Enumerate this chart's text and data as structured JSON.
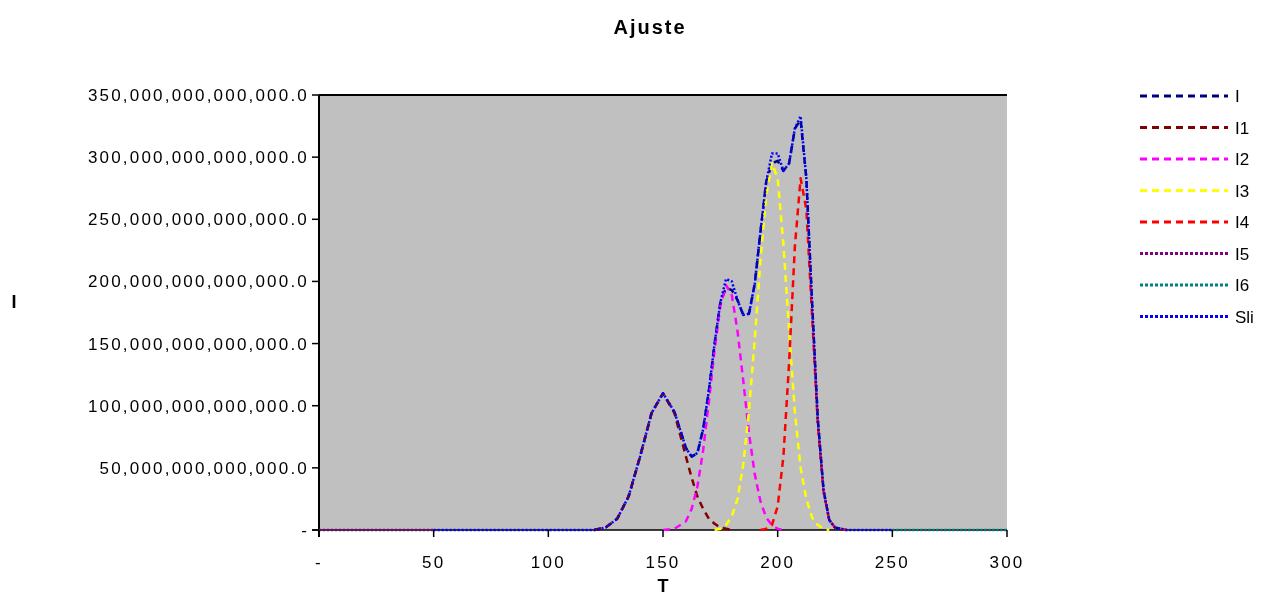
{
  "chart_data": {
    "type": "line",
    "title": "Ajuste",
    "xlabel": "T",
    "ylabel": "I",
    "x": [
      0,
      50,
      100,
      110,
      115,
      120,
      125,
      130,
      135,
      140,
      145,
      150,
      155,
      160,
      162.5,
      165,
      167.5,
      170,
      172.5,
      175,
      177.5,
      180,
      182.5,
      185,
      187.5,
      190,
      192.5,
      195,
      197.5,
      200,
      202.5,
      205,
      207.5,
      210,
      212.5,
      215,
      217.5,
      220,
      222.5,
      225,
      230,
      240,
      250,
      300
    ],
    "series": [
      {
        "name": "I",
        "color": "#000080",
        "line_style": "dashed",
        "values": [
          null,
          null,
          null,
          null,
          null,
          0,
          2000000000000.0,
          9000000000000.0,
          27000000000000.0,
          59000000000000.0,
          94000000000000.0,
          110000000000000.0,
          95000000000000.0,
          66000000000000.0,
          59000000000000.0,
          62000000000000.0,
          81000000000000.0,
          112000000000000.0,
          150000000000000.0,
          183000000000000.0,
          195000000000000.0,
          193000000000000.0,
          185000000000000.0,
          173000000000000.0,
          174000000000000.0,
          198000000000000.0,
          240000000000000.0,
          280000000000000.0,
          295000000000000.0,
          297000000000000.0,
          289000000000000.0,
          295000000000000.0,
          323000000000000.0,
          330000000000000.0,
          283000000000000.0,
          183000000000000.0,
          89000000000000.0,
          32000000000000.0,
          8000000000000.0,
          2000000000000.0,
          0,
          null,
          null,
          null
        ]
      },
      {
        "name": "I1",
        "color": "#800000",
        "line_style": "dashed",
        "values": [
          null,
          null,
          null,
          null,
          null,
          0,
          2000000000000.0,
          9000000000000.0,
          27000000000000.0,
          59000000000000.0,
          94000000000000.0,
          110000000000000.0,
          94000000000000.0,
          59000000000000.0,
          42000000000000.0,
          27000000000000.0,
          17000000000000.0,
          9000000000000.0,
          5000000000000.0,
          2000000000000.0,
          1000000000000.0,
          0,
          null,
          null,
          null,
          null,
          null,
          null,
          null,
          null,
          null,
          null,
          null,
          null,
          null,
          null,
          null,
          null,
          null,
          null,
          null,
          null,
          null,
          null
        ]
      },
      {
        "name": "I2",
        "color": "#ff00ff",
        "line_style": "dashed",
        "values": [
          null,
          null,
          null,
          null,
          null,
          null,
          null,
          null,
          null,
          null,
          null,
          0,
          1000000000000.0,
          7000000000000.0,
          17000000000000.0,
          35000000000000.0,
          64000000000000.0,
          103000000000000.0,
          145000000000000.0,
          180000000000000.0,
          197000000000000.0,
          189000000000000.0,
          160000000000000.0,
          120000000000000.0,
          78000000000000.0,
          45000000000000.0,
          23000000000000.0,
          10000000000000.0,
          4000000000000.0,
          1000000000000.0,
          0,
          null,
          null,
          null,
          null,
          null,
          null,
          null,
          null,
          null,
          null,
          null,
          null,
          null
        ]
      },
      {
        "name": "I3",
        "color": "#ffff00",
        "line_style": "dashed",
        "values": [
          null,
          null,
          null,
          null,
          null,
          null,
          null,
          null,
          null,
          null,
          null,
          null,
          null,
          null,
          null,
          null,
          null,
          null,
          0,
          1000000000000.0,
          4000000000000.0,
          11000000000000.0,
          25000000000000.0,
          53000000000000.0,
          96000000000000.0,
          153000000000000.0,
          217000000000000.0,
          269000000000000.0,
          295000000000000.0,
          283000000000000.0,
          230000000000000.0,
          160000000000000.0,
          95000000000000.0,
          50000000000000.0,
          25000000000000.0,
          10000000000000.0,
          4000000000000.0,
          1000000000000.0,
          0,
          null,
          null,
          null,
          null,
          null
        ]
      },
      {
        "name": "I4",
        "color": "#ff0000",
        "line_style": "dashed",
        "values": [
          null,
          null,
          null,
          null,
          null,
          null,
          null,
          null,
          null,
          null,
          null,
          null,
          null,
          null,
          null,
          null,
          null,
          null,
          null,
          null,
          null,
          null,
          null,
          null,
          null,
          null,
          0,
          1000000000000.0,
          4000000000000.0,
          19000000000000.0,
          59000000000000.0,
          135000000000000.0,
          228000000000000.0,
          283000000000000.0,
          258000000000000.0,
          173000000000000.0,
          85000000000000.0,
          31000000000000.0,
          8000000000000.0,
          2000000000000.0,
          0,
          null,
          null,
          null
        ]
      },
      {
        "name": "I5",
        "color": "#800080",
        "line_style": "dotted",
        "values": [
          0,
          0,
          null,
          null,
          null,
          null,
          null,
          null,
          null,
          null,
          null,
          null,
          null,
          null,
          null,
          null,
          null,
          null,
          null,
          null,
          null,
          null,
          null,
          null,
          null,
          null,
          null,
          null,
          null,
          null,
          null,
          null,
          null,
          null,
          null,
          null,
          null,
          null,
          null,
          null,
          null,
          null,
          null,
          null
        ]
      },
      {
        "name": "I6",
        "color": "#008080",
        "line_style": "dotted",
        "values": [
          null,
          null,
          null,
          null,
          null,
          null,
          null,
          null,
          null,
          null,
          null,
          null,
          null,
          null,
          null,
          null,
          null,
          null,
          null,
          null,
          null,
          null,
          null,
          null,
          null,
          null,
          null,
          null,
          null,
          null,
          null,
          null,
          null,
          null,
          null,
          null,
          null,
          null,
          null,
          null,
          null,
          null,
          0,
          0
        ]
      },
      {
        "name": "Sli",
        "color": "#0000ff",
        "line_style": "dotted",
        "values": [
          null,
          0,
          0,
          0,
          0,
          0,
          2000000000000.0,
          9000000000000.0,
          27000000000000.0,
          59000000000000.0,
          94000000000000.0,
          110000000000000.0,
          95000000000000.0,
          66000000000000.0,
          59000000000000.0,
          62000000000000.0,
          81000000000000.0,
          112000000000000.0,
          150000000000000.0,
          183000000000000.0,
          202000000000000.0,
          200000000000000.0,
          185000000000000.0,
          173000000000000.0,
          174000000000000.0,
          198000000000000.0,
          240000000000000.0,
          280000000000000.0,
          303000000000000.0,
          303000000000000.0,
          289000000000000.0,
          295000000000000.0,
          323000000000000.0,
          333000000000000.0,
          283000000000000.0,
          183000000000000.0,
          89000000000000.0,
          32000000000000.0,
          8000000000000.0,
          2000000000000.0,
          0,
          0,
          0,
          null
        ]
      }
    ],
    "xlim": [
      0,
      300
    ],
    "xticks": [
      {
        "value": 0,
        "label": "-"
      },
      50,
      100,
      150,
      200,
      250,
      300
    ],
    "ylim": [
      0,
      350000000000000.0
    ],
    "yticks": [
      {
        "value": 0,
        "label": "-"
      },
      {
        "value": 50000000000000.0,
        "label": "50,000,000,000,000.0"
      },
      {
        "value": 100000000000000.0,
        "label": "100,000,000,000,000.0"
      },
      {
        "value": 150000000000000.0,
        "label": "150,000,000,000,000.0"
      },
      {
        "value": 200000000000000.0,
        "label": "200,000,000,000,000.0"
      },
      {
        "value": 250000000000000.0,
        "label": "250,000,000,000,000.0"
      },
      {
        "value": 300000000000000.0,
        "label": "300,000,000,000,000.0"
      },
      {
        "value": 350000000000000.0,
        "label": "350,000,000,000,000.0"
      }
    ],
    "grid": false,
    "legend": "right"
  }
}
